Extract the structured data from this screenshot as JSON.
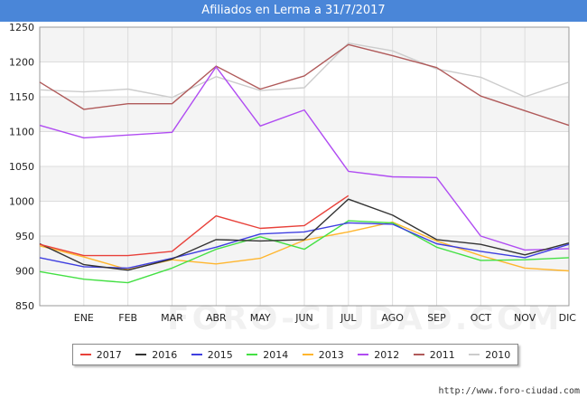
{
  "title": "Afiliados en Lerma a 31/7/2017",
  "footer_url": "http://www.foro-ciudad.com",
  "watermark": "FORO-CIUDAD.COM",
  "chart_data": {
    "type": "line",
    "title": "Afiliados en Lerma a 31/7/2017",
    "x_categories": [
      "",
      "ENE",
      "FEB",
      "MAR",
      "ABR",
      "MAY",
      "JUN",
      "JUL",
      "AGO",
      "SEP",
      "OCT",
      "NOV",
      "DIC"
    ],
    "ylim": [
      850,
      1250
    ],
    "yticks": [
      850,
      900,
      950,
      1000,
      1050,
      1100,
      1150,
      1200,
      1250
    ],
    "grid": true,
    "legend_position": "bottom",
    "series": [
      {
        "name": "2017",
        "color": "#e8413a",
        "values": [
          938,
          922,
          922,
          928,
          979,
          961,
          965,
          1008,
          null,
          null,
          null,
          null,
          null
        ]
      },
      {
        "name": "2016",
        "color": "#333333",
        "values": [
          939,
          909,
          901,
          917,
          945,
          943,
          945,
          1003,
          980,
          945,
          938,
          923,
          940
        ]
      },
      {
        "name": "2015",
        "color": "#3f3fe0",
        "values": [
          919,
          906,
          904,
          918,
          934,
          953,
          956,
          969,
          967,
          939,
          928,
          919,
          938
        ]
      },
      {
        "name": "2014",
        "color": "#44e044",
        "values": [
          899,
          888,
          883,
          904,
          931,
          949,
          931,
          972,
          969,
          934,
          915,
          916,
          919
        ]
      },
      {
        "name": "2013",
        "color": "#ffb62e",
        "values": [
          936,
          920,
          902,
          916,
          910,
          918,
          944,
          956,
          970,
          943,
          922,
          904,
          900
        ]
      },
      {
        "name": "2012",
        "color": "#b04cf2",
        "values": [
          1109,
          1091,
          1095,
          1099,
          1193,
          1108,
          1131,
          1043,
          1035,
          1034,
          950,
          930,
          932
        ]
      },
      {
        "name": "2011",
        "color": "#b05a5a",
        "values": [
          1171,
          1132,
          1140,
          1140,
          1194,
          1161,
          1180,
          1225,
          1209,
          1192,
          1151,
          1130,
          1109
        ]
      },
      {
        "name": "2010",
        "color": "#cccccc",
        "values": [
          1160,
          1157,
          1161,
          1149,
          1179,
          1159,
          1163,
          1227,
          1216,
          1190,
          1178,
          1150,
          1171
        ]
      }
    ]
  }
}
